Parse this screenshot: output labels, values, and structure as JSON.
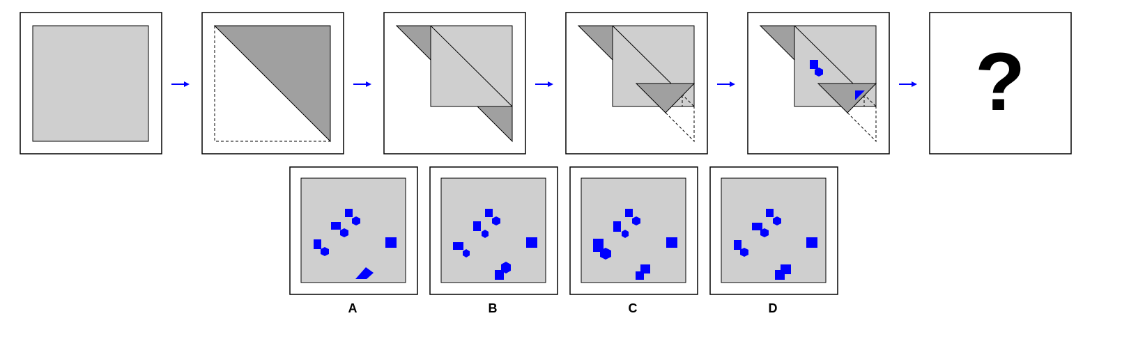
{
  "colors": {
    "paper_light": "#cfcfcf",
    "paper_dark": "#a0a0a0",
    "hole": "#0000ff",
    "arrow": "#0000ff",
    "frame": "#000000",
    "background": "#ffffff"
  },
  "sequence": {
    "step_count": 5,
    "arrow_count": 5,
    "answer_placeholder": "?"
  },
  "options": [
    {
      "label": "A"
    },
    {
      "label": "B"
    },
    {
      "label": "C"
    },
    {
      "label": "D"
    }
  ]
}
